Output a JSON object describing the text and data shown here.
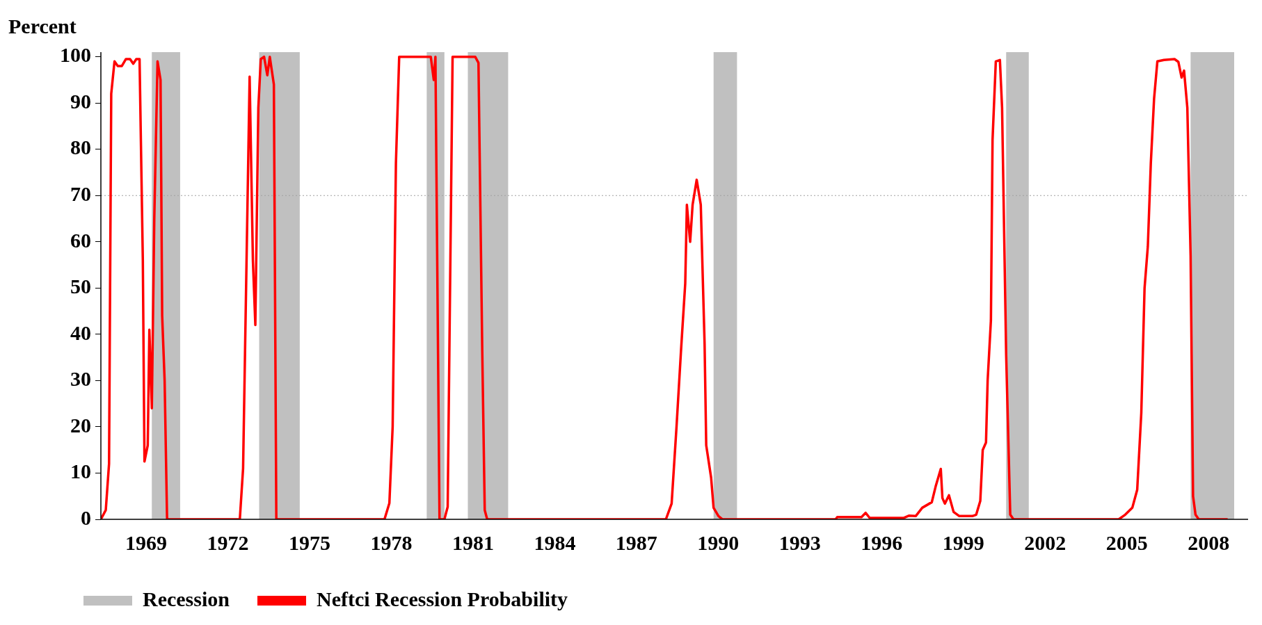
{
  "chart_data": {
    "type": "line",
    "ylabel": "Percent",
    "xlim": [
      1967.34,
      2009.45
    ],
    "xticks": [
      1969,
      1972,
      1975,
      1978,
      1981,
      1984,
      1987,
      1990,
      1993,
      1996,
      1999,
      2002,
      2005,
      2008
    ],
    "ylim": [
      0,
      101
    ],
    "yticks": [
      0,
      10,
      20,
      30,
      40,
      50,
      60,
      70,
      80,
      90,
      100
    ],
    "grid": false,
    "legend": "bottom",
    "marker": "none",
    "line_style": "solid",
    "bands": [
      {
        "axis": "x",
        "from": 1969.21,
        "to": 1970.25,
        "label": "Recession",
        "color": "#c0c0c0"
      },
      {
        "axis": "x",
        "from": 1973.15,
        "to": 1974.64,
        "color": "#c0c0c0"
      },
      {
        "axis": "x",
        "from": 1979.3,
        "to": 1979.95,
        "color": "#c0c0c0"
      },
      {
        "axis": "x",
        "from": 1980.81,
        "to": 1982.29,
        "color": "#c0c0c0"
      },
      {
        "axis": "x",
        "from": 1989.83,
        "to": 1990.69,
        "color": "#c0c0c0"
      },
      {
        "axis": "x",
        "from": 2000.57,
        "to": 2001.4,
        "color": "#c0c0c0"
      },
      {
        "axis": "x",
        "from": 2007.34,
        "to": 2008.94,
        "color": "#c0c0c0"
      }
    ],
    "ref_lines": [
      {
        "axis": "y",
        "value": 70,
        "color": "#a0a0a0",
        "line_style": "dotted"
      }
    ],
    "series": [
      {
        "name": "Neftci Recession Probability",
        "color": "#ff0000",
        "x": [
          1967.34,
          1967.52,
          1967.64,
          1967.72,
          1967.84,
          1967.96,
          1968.11,
          1968.26,
          1968.41,
          1968.53,
          1968.64,
          1968.76,
          1968.88,
          1968.94,
          1969.06,
          1969.12,
          1969.21,
          1969.3,
          1969.42,
          1969.53,
          1969.59,
          1969.68,
          1969.77,
          1972.44,
          1972.56,
          1972.8,
          1972.92,
          1973.01,
          1973.12,
          1973.21,
          1973.33,
          1973.45,
          1973.54,
          1973.69,
          1973.78,
          1977.75,
          1977.93,
          1978.05,
          1978.17,
          1978.29,
          1978.58,
          1978.73,
          1978.97,
          1979.09,
          1979.27,
          1979.45,
          1979.56,
          1979.62,
          1979.77,
          1979.95,
          1980.07,
          1980.25,
          1980.48,
          1980.69,
          1980.87,
          1981.08,
          1981.2,
          1981.34,
          1981.43,
          1981.52,
          1988.08,
          1988.29,
          1988.47,
          1988.64,
          1988.79,
          1988.85,
          1988.97,
          1989.06,
          1989.21,
          1989.36,
          1989.5,
          1989.56,
          1989.74,
          1989.83,
          1990.01,
          1990.16,
          1994.31,
          1994.37,
          1995.26,
          1995.41,
          1995.56,
          1996.8,
          1997.01,
          1997.25,
          1997.49,
          1997.84,
          1997.99,
          1998.17,
          1998.23,
          1998.32,
          1998.47,
          1998.64,
          1998.85,
          1999.33,
          1999.47,
          1999.62,
          1999.71,
          1999.83,
          1999.89,
          2000.01,
          2000.07,
          2000.19,
          2000.34,
          2000.42,
          2000.57,
          2000.72,
          2000.84,
          2004.7,
          2004.94,
          2005.2,
          2005.38,
          2005.53,
          2005.65,
          2005.77,
          2005.88,
          2006.0,
          2006.12,
          2006.36,
          2006.75,
          2006.89,
          2007.01,
          2007.1,
          2007.22,
          2007.34,
          2007.43,
          2007.52,
          2007.64,
          2008.7
        ],
        "values": [
          0,
          2,
          12,
          92,
          99,
          98,
          98,
          99.5,
          99.5,
          98.5,
          99.5,
          99.5,
          56,
          12.5,
          16,
          41,
          24,
          65,
          99,
          95,
          44,
          30,
          0,
          0,
          11,
          95.7,
          56,
          42,
          89,
          99.5,
          100,
          96,
          100,
          94,
          0,
          0,
          3.5,
          20,
          77,
          100,
          100,
          100,
          100,
          100,
          100,
          100,
          95,
          100,
          0,
          0,
          2.7,
          100,
          100,
          100,
          100,
          100,
          98.7,
          36,
          2,
          0,
          0,
          3.4,
          20,
          37,
          51,
          68,
          60,
          68,
          73.4,
          68,
          38,
          16,
          9,
          2.5,
          0.7,
          0,
          0,
          0.5,
          0.5,
          1.4,
          0.3,
          0.3,
          0.8,
          0.7,
          2.5,
          3.7,
          7.3,
          10.9,
          4.6,
          3.4,
          5.2,
          1.6,
          0.7,
          0.7,
          1,
          4,
          15,
          16.6,
          30,
          43,
          82,
          99,
          99.3,
          89,
          35.5,
          1,
          0,
          0,
          1,
          2.5,
          6.4,
          23,
          50,
          59,
          77,
          91,
          99,
          99.3,
          99.5,
          98.9,
          95.5,
          97,
          89,
          57,
          5,
          1,
          0,
          0
        ]
      }
    ]
  }
}
